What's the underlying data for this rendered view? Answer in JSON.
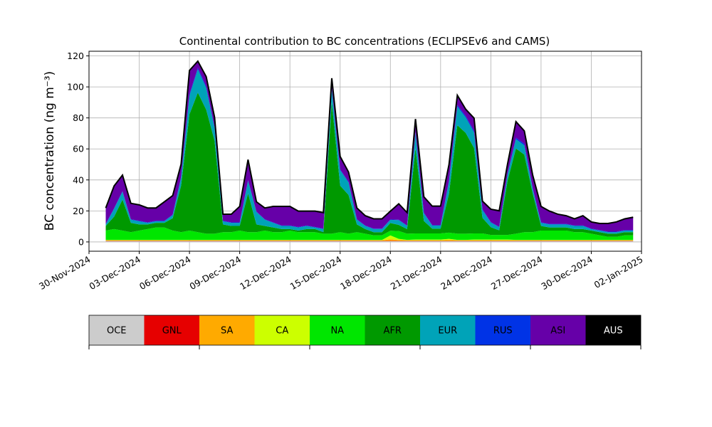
{
  "chart_data": {
    "type": "area",
    "stacked": true,
    "title": "Continental contribution to BC concentrations (ECLIPSEv6 and CAMS)",
    "ylabel": "BC concentration (ng m⁻³)",
    "xlabel": "",
    "xlim": [
      "2024-11-30",
      "2025-01-02"
    ],
    "ylim": [
      -6,
      123
    ],
    "grid": true,
    "y_ticks": [
      0,
      20,
      40,
      60,
      80,
      100,
      120
    ],
    "x_ticks": [
      "2024-11-30",
      "2024-12-03",
      "2024-12-06",
      "2024-12-09",
      "2024-12-12",
      "2024-12-15",
      "2024-12-18",
      "2024-12-21",
      "2024-12-24",
      "2024-12-27",
      "2024-12-30",
      "2025-01-02"
    ],
    "x_tick_labels": [
      "30-Nov-2024",
      "03-Dec-2024",
      "06-Dec-2024",
      "09-Dec-2024",
      "12-Dec-2024",
      "15-Dec-2024",
      "18-Dec-2024",
      "21-Dec-2024",
      "24-Dec-2024",
      "27-Dec-2024",
      "30-Dec-2024",
      "02-Jan-2025"
    ],
    "legend_position": "below plot (colour bar)",
    "x": [
      "2024-12-01",
      "2024-12-01T12:00",
      "2024-12-02",
      "2024-12-02T12:00",
      "2024-12-03",
      "2024-12-03T12:00",
      "2024-12-04",
      "2024-12-04T12:00",
      "2024-12-05",
      "2024-12-05T12:00",
      "2024-12-06",
      "2024-12-06T12:00",
      "2024-12-07",
      "2024-12-07T12:00",
      "2024-12-08",
      "2024-12-08T12:00",
      "2024-12-09",
      "2024-12-09T12:00",
      "2024-12-10",
      "2024-12-10T12:00",
      "2024-12-11",
      "2024-12-11T12:00",
      "2024-12-12",
      "2024-12-12T12:00",
      "2024-12-13",
      "2024-12-13T12:00",
      "2024-12-14",
      "2024-12-14T12:00",
      "2024-12-15",
      "2024-12-15T12:00",
      "2024-12-16",
      "2024-12-16T12:00",
      "2024-12-17",
      "2024-12-17T12:00",
      "2024-12-18",
      "2024-12-18T12:00",
      "2024-12-19",
      "2024-12-19T12:00",
      "2024-12-20",
      "2024-12-20T12:00",
      "2024-12-21",
      "2024-12-21T12:00",
      "2024-12-22",
      "2024-12-22T12:00",
      "2024-12-23",
      "2024-12-23T12:00",
      "2024-12-24",
      "2024-12-24T12:00",
      "2024-12-25",
      "2024-12-25T12:00",
      "2024-12-26",
      "2024-12-26T12:00",
      "2024-12-27",
      "2024-12-27T12:00",
      "2024-12-28",
      "2024-12-28T12:00",
      "2024-12-29",
      "2024-12-29T12:00",
      "2024-12-30",
      "2024-12-30T12:00",
      "2024-12-31",
      "2024-12-31T12:00",
      "2025-01-01",
      "2025-01-01T12:00"
    ],
    "series": [
      {
        "name": "OCE",
        "color": "#cccccc",
        "values": [
          0.5,
          0.5,
          0.5,
          0.5,
          0.5,
          0.5,
          0.5,
          0.5,
          0.5,
          0.5,
          0.5,
          0.5,
          0.5,
          0.5,
          0.5,
          0.5,
          0.5,
          0.5,
          0.5,
          0.5,
          0.5,
          0.5,
          0.5,
          0.5,
          0.5,
          0.5,
          0.5,
          0.5,
          0.5,
          0.5,
          0.5,
          0.5,
          0.5,
          0.5,
          0.5,
          0.5,
          0.5,
          0.5,
          0.5,
          0.5,
          0.5,
          0.5,
          0.5,
          0.5,
          0.5,
          0.5,
          0.5,
          0.5,
          0.5,
          0.5,
          0.5,
          0.5,
          0.5,
          0.5,
          0.5,
          0.5,
          0.5,
          0.5,
          0.5,
          0.5,
          0.5,
          0.5,
          0.5,
          0.5
        ]
      },
      {
        "name": "GNL",
        "color": "#e60000",
        "values": [
          0.2,
          0.2,
          0.2,
          0.2,
          0.2,
          0.2,
          0.2,
          0.2,
          0.2,
          0.2,
          0.2,
          0.2,
          0.2,
          0.2,
          0.2,
          0.2,
          0.2,
          0.2,
          0.2,
          0.2,
          0.2,
          0.2,
          0.2,
          0.2,
          0.2,
          0.2,
          0.2,
          0.2,
          0.2,
          0.2,
          0.2,
          0.2,
          0.2,
          0.2,
          0.2,
          0.2,
          0.2,
          0.2,
          0.2,
          0.2,
          0.2,
          0.2,
          0.2,
          0.2,
          0.2,
          0.2,
          0.2,
          0.2,
          0.2,
          0.2,
          0.2,
          0.2,
          0.2,
          0.2,
          0.2,
          0.2,
          0.2,
          0.2,
          0.2,
          0.2,
          0.2,
          0.2,
          0.2,
          0.2
        ]
      },
      {
        "name": "SA",
        "color": "#ffaa00",
        "values": [
          0.3,
          0.3,
          0.3,
          0.3,
          0.3,
          0.3,
          0.3,
          0.3,
          0.3,
          0.3,
          0.3,
          0.3,
          0.3,
          0.3,
          0.3,
          0.3,
          0.3,
          0.3,
          0.3,
          0.3,
          0.3,
          0.3,
          0.3,
          0.3,
          0.3,
          0.3,
          0.3,
          0.3,
          0.3,
          0.3,
          0.3,
          0.3,
          0.3,
          0.3,
          1.0,
          0.5,
          0.3,
          0.3,
          0.3,
          0.3,
          0.3,
          0.5,
          0.3,
          0.3,
          0.3,
          0.3,
          0.3,
          0.3,
          0.3,
          0.3,
          0.3,
          0.3,
          0.3,
          0.3,
          0.3,
          0.3,
          0.3,
          0.3,
          0.3,
          0.3,
          0.3,
          0.3,
          0.3,
          0.3
        ]
      },
      {
        "name": "CA",
        "color": "#ccff00",
        "values": [
          0.3,
          0.3,
          0.3,
          0.3,
          0.3,
          0.3,
          0.3,
          0.3,
          0.3,
          0.3,
          0.3,
          0.3,
          0.3,
          0.3,
          0.3,
          0.3,
          0.3,
          0.3,
          0.3,
          0.3,
          0.3,
          0.3,
          0.3,
          0.3,
          0.3,
          0.3,
          0.3,
          0.3,
          0.3,
          0.3,
          0.3,
          0.3,
          0.3,
          0.3,
          2.5,
          0.8,
          0.3,
          0.5,
          0.5,
          0.5,
          0.5,
          0.8,
          0.3,
          0.3,
          0.5,
          0.5,
          0.5,
          0.5,
          0.5,
          0.3,
          0.3,
          0.3,
          0.3,
          0.3,
          0.3,
          0.3,
          0.3,
          0.3,
          0.3,
          0.3,
          0.3,
          0.3,
          0.3,
          0.3
        ]
      },
      {
        "name": "NA",
        "color": "#00e600",
        "values": [
          6,
          7,
          6,
          5,
          6,
          7,
          8,
          8,
          6,
          5,
          6,
          5,
          4,
          4,
          5,
          5,
          6,
          5,
          5,
          6,
          5,
          5,
          6,
          5,
          5,
          5,
          4,
          4,
          5,
          4,
          5,
          4,
          3,
          3,
          3,
          5,
          4,
          4,
          4,
          4,
          4,
          4,
          4,
          4,
          4,
          4,
          3,
          3,
          3,
          4,
          5,
          5,
          6,
          6,
          6,
          6,
          5,
          5,
          4,
          3,
          2,
          2,
          3,
          3
        ]
      },
      {
        "name": "AFR",
        "color": "#009900",
        "values": [
          3,
          8,
          20,
          6,
          4,
          3,
          3,
          3,
          8,
          30,
          75,
          90,
          80,
          60,
          5,
          4,
          3,
          25,
          5,
          3,
          3,
          2,
          1,
          1,
          2,
          2,
          1,
          85,
          30,
          25,
          5,
          3,
          2,
          2,
          5,
          4,
          3,
          55,
          8,
          3,
          3,
          25,
          70,
          65,
          55,
          10,
          5,
          3,
          35,
          55,
          50,
          25,
          3,
          2,
          2,
          2,
          2,
          2,
          2,
          2,
          2,
          2,
          2,
          2
        ]
      },
      {
        "name": "EUR",
        "color": "#00a3b8",
        "values": [
          1,
          5,
          5,
          2,
          2,
          1,
          1,
          1,
          2,
          5,
          12,
          15,
          14,
          8,
          2,
          2,
          2,
          8,
          8,
          4,
          3,
          2,
          2,
          2,
          2,
          1,
          2,
          8,
          10,
          8,
          3,
          2,
          2,
          2,
          2,
          3,
          2,
          10,
          5,
          2,
          2,
          8,
          12,
          10,
          10,
          5,
          3,
          2,
          4,
          6,
          6,
          3,
          2,
          2,
          2,
          2,
          2,
          2,
          1,
          1,
          1,
          1,
          1,
          1
        ]
      },
      {
        "name": "RUS",
        "color": "#0033e6",
        "values": [
          0.3,
          0.5,
          0.5,
          0.3,
          0.3,
          0.3,
          0.3,
          0.3,
          0.3,
          0.5,
          1,
          1,
          1,
          0.8,
          0.3,
          0.3,
          0.3,
          0.5,
          0.3,
          0.3,
          0.3,
          0.3,
          0.3,
          0.3,
          0.3,
          0.3,
          0.3,
          1,
          0.5,
          0.5,
          0.3,
          0.3,
          0.3,
          0.3,
          0.3,
          0.3,
          0.3,
          0.5,
          0.3,
          0.3,
          0.3,
          0.5,
          1,
          1,
          1,
          0.5,
          0.3,
          0.3,
          0.5,
          1,
          1,
          0.5,
          0.3,
          0.3,
          0.3,
          0.3,
          0.3,
          0.3,
          0.3,
          0.3,
          0.3,
          0.3,
          0.3,
          0.3
        ]
      },
      {
        "name": "ASI",
        "color": "#6600a8",
        "values": [
          10,
          14,
          10,
          10,
          10,
          9,
          8,
          12,
          12,
          8,
          15,
          4,
          6,
          6,
          4,
          5,
          10,
          13,
          6,
          7,
          10,
          12,
          12,
          10,
          9,
          10,
          10,
          6,
          8,
          6,
          7,
          6,
          6,
          6,
          5,
          10,
          8,
          8,
          10,
          12,
          12,
          10,
          6,
          4,
          8,
          5,
          8,
          10,
          6,
          10,
          8,
          8,
          10,
          8,
          6,
          5,
          4,
          6,
          4,
          4,
          5,
          6,
          7,
          8
        ]
      },
      {
        "name": "AUS",
        "color": "#000000",
        "values": [
          0.3,
          0.3,
          0.3,
          0.3,
          0.3,
          0.3,
          0.3,
          0.3,
          0.3,
          0.3,
          0.3,
          0.3,
          0.3,
          0.3,
          0.3,
          0.3,
          0.3,
          0.3,
          0.3,
          0.3,
          0.3,
          0.3,
          0.3,
          0.3,
          0.3,
          0.3,
          0.3,
          0.3,
          0.3,
          0.3,
          0.3,
          0.3,
          0.3,
          0.3,
          0.3,
          0.3,
          0.3,
          0.3,
          0.3,
          0.3,
          0.3,
          0.3,
          0.3,
          0.3,
          0.3,
          0.3,
          0.3,
          0.3,
          0.3,
          0.3,
          0.3,
          0.3,
          0.3,
          0.3,
          0.3,
          0.3,
          0.3,
          0.3,
          0.3,
          0.3,
          0.3,
          0.3,
          0.3,
          0.3
        ]
      }
    ]
  }
}
